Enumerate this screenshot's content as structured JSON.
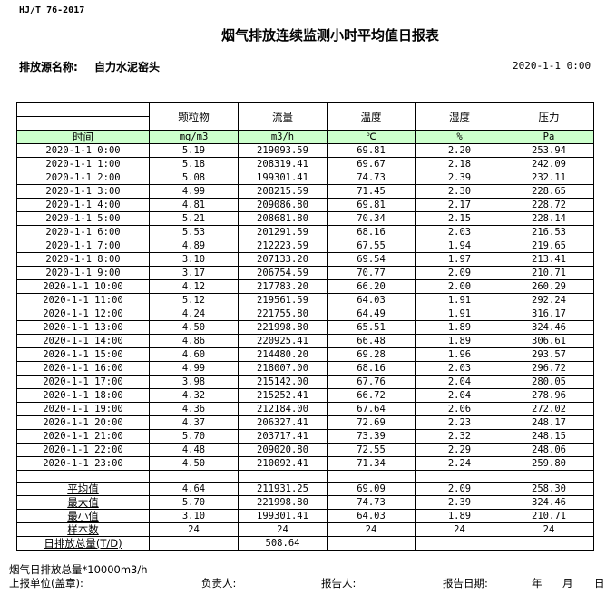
{
  "header": {
    "standard": "HJ/T  76-2017",
    "title": "烟气排放连续监测小时平均值日报表",
    "source_label": "排放源名称:",
    "source_name": "自力水泥窑头",
    "datetime": "2020-1-1 0:00"
  },
  "table": {
    "columns": [
      "颗粒物",
      "流量",
      "温度",
      "湿度",
      "压力"
    ],
    "time_label": "时间",
    "units": [
      "mg/m3",
      "m3/h",
      "℃",
      "%",
      "Pa"
    ],
    "rows": [
      [
        "2020-1-1 0:00",
        "5.19",
        "219093.59",
        "69.81",
        "2.20",
        "253.94"
      ],
      [
        "2020-1-1 1:00",
        "5.18",
        "208319.41",
        "69.67",
        "2.18",
        "242.09"
      ],
      [
        "2020-1-1 2:00",
        "5.08",
        "199301.41",
        "74.73",
        "2.39",
        "232.11"
      ],
      [
        "2020-1-1 3:00",
        "4.99",
        "208215.59",
        "71.45",
        "2.30",
        "228.65"
      ],
      [
        "2020-1-1 4:00",
        "4.81",
        "209086.80",
        "69.81",
        "2.17",
        "228.72"
      ],
      [
        "2020-1-1 5:00",
        "5.21",
        "208681.80",
        "70.34",
        "2.15",
        "228.14"
      ],
      [
        "2020-1-1 6:00",
        "5.53",
        "201291.59",
        "68.16",
        "2.03",
        "216.53"
      ],
      [
        "2020-1-1 7:00",
        "4.89",
        "212223.59",
        "67.55",
        "1.94",
        "219.65"
      ],
      [
        "2020-1-1 8:00",
        "3.10",
        "207133.20",
        "69.54",
        "1.97",
        "213.41"
      ],
      [
        "2020-1-1 9:00",
        "3.17",
        "206754.59",
        "70.77",
        "2.09",
        "210.71"
      ],
      [
        "2020-1-1 10:00",
        "4.12",
        "217783.20",
        "66.20",
        "2.00",
        "260.29"
      ],
      [
        "2020-1-1 11:00",
        "5.12",
        "219561.59",
        "64.03",
        "1.91",
        "292.24"
      ],
      [
        "2020-1-1 12:00",
        "4.24",
        "221755.80",
        "64.49",
        "1.91",
        "316.17"
      ],
      [
        "2020-1-1 13:00",
        "4.50",
        "221998.80",
        "65.51",
        "1.89",
        "324.46"
      ],
      [
        "2020-1-1 14:00",
        "4.86",
        "220925.41",
        "66.48",
        "1.89",
        "306.61"
      ],
      [
        "2020-1-1 15:00",
        "4.60",
        "214480.20",
        "69.28",
        "1.96",
        "293.57"
      ],
      [
        "2020-1-1 16:00",
        "4.99",
        "218007.00",
        "68.16",
        "2.03",
        "296.72"
      ],
      [
        "2020-1-1 17:00",
        "3.98",
        "215142.00",
        "67.76",
        "2.04",
        "280.05"
      ],
      [
        "2020-1-1 18:00",
        "4.32",
        "215252.41",
        "66.72",
        "2.04",
        "278.96"
      ],
      [
        "2020-1-1 19:00",
        "4.36",
        "212184.00",
        "67.64",
        "2.06",
        "272.02"
      ],
      [
        "2020-1-1 20:00",
        "4.37",
        "206327.41",
        "72.69",
        "2.23",
        "248.17"
      ],
      [
        "2020-1-1 21:00",
        "5.70",
        "203717.41",
        "73.39",
        "2.32",
        "248.15"
      ],
      [
        "2020-1-1 22:00",
        "4.48",
        "209020.80",
        "72.55",
        "2.29",
        "248.06"
      ],
      [
        "2020-1-1 23:00",
        "4.50",
        "210092.41",
        "71.34",
        "2.24",
        "259.80"
      ]
    ],
    "summary": [
      [
        "平均值",
        "4.64",
        "211931.25",
        "69.09",
        "2.09",
        "258.30"
      ],
      [
        "最大值",
        "5.70",
        "221998.80",
        "74.73",
        "2.39",
        "324.46"
      ],
      [
        "最小值",
        "3.10",
        "199301.41",
        "64.03",
        "1.89",
        "210.71"
      ],
      [
        "样本数",
        "24",
        "24",
        "24",
        "24",
        "24"
      ]
    ],
    "daily_total": {
      "label": "日排放总量(T/D)",
      "value": "508.64"
    }
  },
  "footer": {
    "note": "烟气日排放总量*10000m3/h",
    "unit_label": "上报单位(盖章):",
    "responsible_label": "负责人:",
    "reporter_label": "报告人:",
    "date_label": "报告日期:",
    "year": "年",
    "month": "月",
    "day": "日"
  },
  "colors": {
    "unit_row_bg": "#ccffcc"
  }
}
